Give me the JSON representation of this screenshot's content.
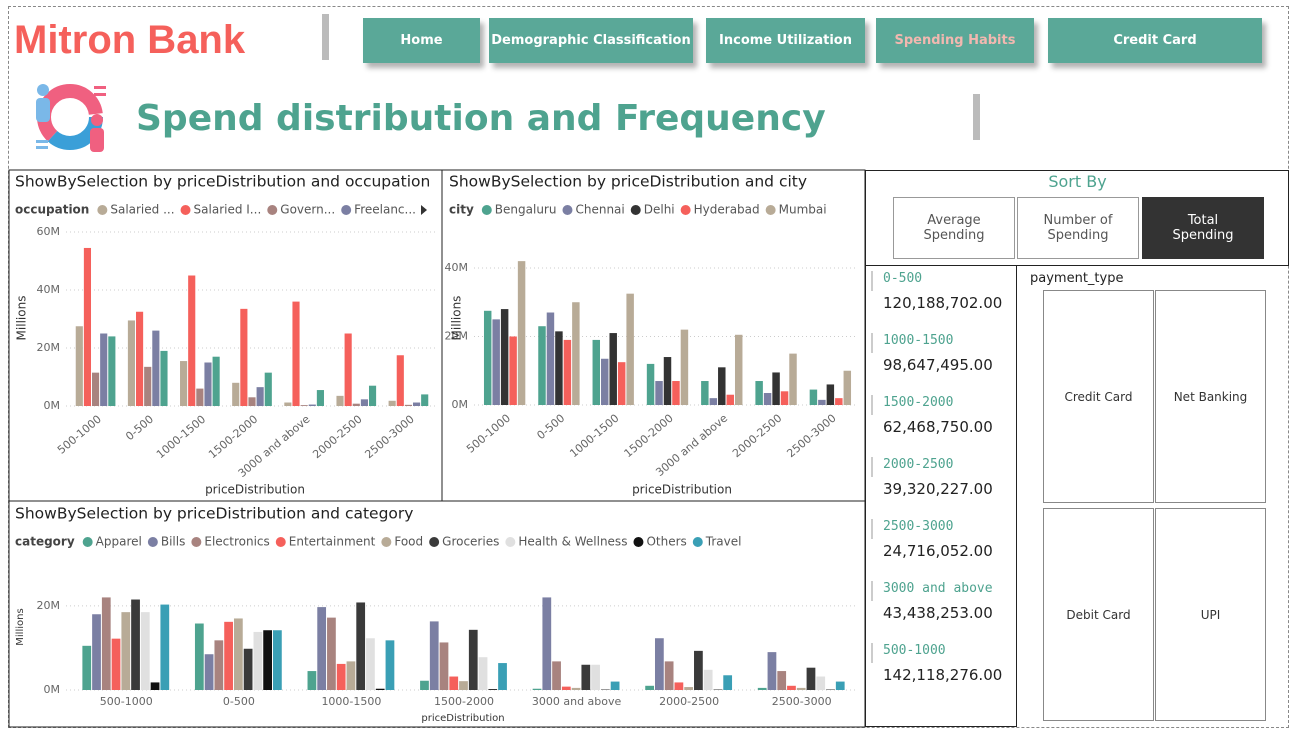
{
  "header": {
    "brand": "Mitron Bank",
    "page_title": "Spend distribution  and Frequency"
  },
  "nav": [
    "Home",
    "Demographic Classification",
    "Income Utilization",
    "Spending Habits",
    "Credit Card"
  ],
  "chart_data": [
    {
      "type": "bar",
      "title": "ShowBySelection by priceDistribution and occupation",
      "legend_title": "occupation",
      "x_label": "priceDistribution",
      "y_label": "Millions",
      "categories": [
        "500-1000",
        "0-500",
        "1000-1500",
        "1500-2000",
        "3000 and above",
        "2000-2500",
        "2500-3000"
      ],
      "series": [
        {
          "name": "Salaried ...",
          "color": "#b8ab97",
          "values": [
            27.5,
            29.5,
            15.5,
            8,
            1.2,
            3.5,
            1.8
          ]
        },
        {
          "name": "Salaried I...",
          "color": "#f5605b",
          "values": [
            54.5,
            32.5,
            45,
            33.5,
            36,
            25,
            17.5
          ]
        },
        {
          "name": "Govern...",
          "color": "#a8837f",
          "values": [
            11.5,
            13.5,
            6,
            3,
            0.3,
            0.8,
            0.4
          ]
        },
        {
          "name": "Freelanc...",
          "color": "#7b7fa3",
          "values": [
            25,
            26,
            15,
            6.5,
            0.5,
            2.3,
            1.2
          ]
        },
        {
          "name": null,
          "color": "#4ea38f",
          "values": [
            24,
            19,
            17,
            11.5,
            5.5,
            7,
            4
          ]
        }
      ],
      "ylim": [
        0,
        60
      ],
      "yticks": [
        {
          "value": 0,
          "label": "0M"
        },
        {
          "value": 20,
          "label": "20M"
        },
        {
          "value": 40,
          "label": "40M"
        },
        {
          "value": 60,
          "label": "60M"
        }
      ],
      "grid": true
    },
    {
      "type": "bar",
      "title": "ShowBySelection by priceDistribution and city",
      "legend_title": "city",
      "x_label": "priceDistribution",
      "y_label": "Millions",
      "categories": [
        "500-1000",
        "0-500",
        "1000-1500",
        "1500-2000",
        "3000 and above",
        "2000-2500",
        "2500-3000"
      ],
      "series": [
        {
          "name": "Bengaluru",
          "color": "#4ea38f",
          "values": [
            27.5,
            23,
            19,
            12,
            7,
            7,
            4.5
          ]
        },
        {
          "name": "Chennai",
          "color": "#7b7fa3",
          "values": [
            25,
            27,
            13.5,
            7,
            2,
            3.5,
            1.5
          ]
        },
        {
          "name": "Delhi",
          "color": "#333333",
          "values": [
            28,
            21.5,
            21,
            14,
            11,
            9.5,
            6
          ]
        },
        {
          "name": "Hyderabad",
          "color": "#f5605b",
          "values": [
            20,
            19,
            12.5,
            7,
            3,
            4,
            2
          ]
        },
        {
          "name": "Mumbai",
          "color": "#b8ab97",
          "values": [
            42,
            30,
            32.5,
            22,
            20.5,
            15,
            10
          ]
        }
      ],
      "ylim": [
        0,
        47
      ],
      "yticks": [
        {
          "value": 0,
          "label": "0M"
        },
        {
          "value": 20,
          "label": "20M"
        },
        {
          "value": 40,
          "label": "40M"
        }
      ],
      "grid": true
    },
    {
      "type": "bar",
      "title": "ShowBySelection by priceDistribution and category",
      "legend_title": "category",
      "x_label": "priceDistribution",
      "y_label": "Millions",
      "categories": [
        "500-1000",
        "0-500",
        "1000-1500",
        "1500-2000",
        "3000 and above",
        "2000-2500",
        "2500-3000"
      ],
      "series": [
        {
          "name": "Apparel",
          "color": "#4ea38f",
          "values": [
            10.5,
            15.8,
            4.5,
            2.2,
            0.3,
            1,
            0.5
          ]
        },
        {
          "name": "Bills",
          "color": "#7b7fa3",
          "values": [
            18,
            8.5,
            19.7,
            16.3,
            22,
            12.3,
            9
          ]
        },
        {
          "name": "Electronics",
          "color": "#a8837f",
          "values": [
            22,
            11.8,
            17.2,
            11.3,
            6.8,
            6.8,
            4.5
          ]
        },
        {
          "name": "Entertainment",
          "color": "#f5605b",
          "values": [
            12.2,
            16.2,
            6.2,
            3.2,
            0.8,
            1.8,
            1
          ]
        },
        {
          "name": "Food",
          "color": "#b8ab97",
          "values": [
            18.5,
            17,
            6.8,
            2.1,
            0.5,
            0.7,
            0.5
          ]
        },
        {
          "name": "Groceries",
          "color": "#3a3a3a",
          "values": [
            21.5,
            9.8,
            20.8,
            14.3,
            6,
            9.3,
            5.3
          ]
        },
        {
          "name": "Health & Wellness",
          "color": "#e0e0e0",
          "values": [
            18.5,
            13.8,
            12.3,
            7.8,
            6,
            4.8,
            3.2
          ]
        },
        {
          "name": "Others",
          "color": "#111111",
          "values": [
            1.8,
            14.2,
            0.3,
            0.2,
            0.1,
            0.1,
            0.1
          ]
        },
        {
          "name": "Travel",
          "color": "#3a9fb5",
          "values": [
            20.3,
            14.2,
            11.8,
            6.4,
            2,
            3.5,
            2
          ]
        }
      ],
      "ylim": [
        0,
        24
      ],
      "yticks": [
        {
          "value": 0,
          "label": "0M"
        },
        {
          "value": 20,
          "label": "20M"
        }
      ],
      "grid": true
    }
  ],
  "sort_by": {
    "title": "Sort By",
    "options": [
      "Average Spending",
      "Number of Spending",
      "Total Spending"
    ]
  },
  "cards": [
    {
      "label": "0-500",
      "value": "120,188,702.00"
    },
    {
      "label": "1000-1500",
      "value": "98,647,495.00"
    },
    {
      "label": "1500-2000",
      "value": "62,468,750.00"
    },
    {
      "label": "2000-2500",
      "value": "39,320,227.00"
    },
    {
      "label": "2500-3000",
      "value": "24,716,052.00"
    },
    {
      "label": "3000 and above",
      "value": "43,438,253.00"
    },
    {
      "label": "500-1000",
      "value": "142,118,276.00"
    }
  ],
  "payment_type": {
    "title": "payment_type",
    "options": [
      "Credit Card",
      "Net Banking",
      "Debit Card",
      "UPI"
    ]
  }
}
